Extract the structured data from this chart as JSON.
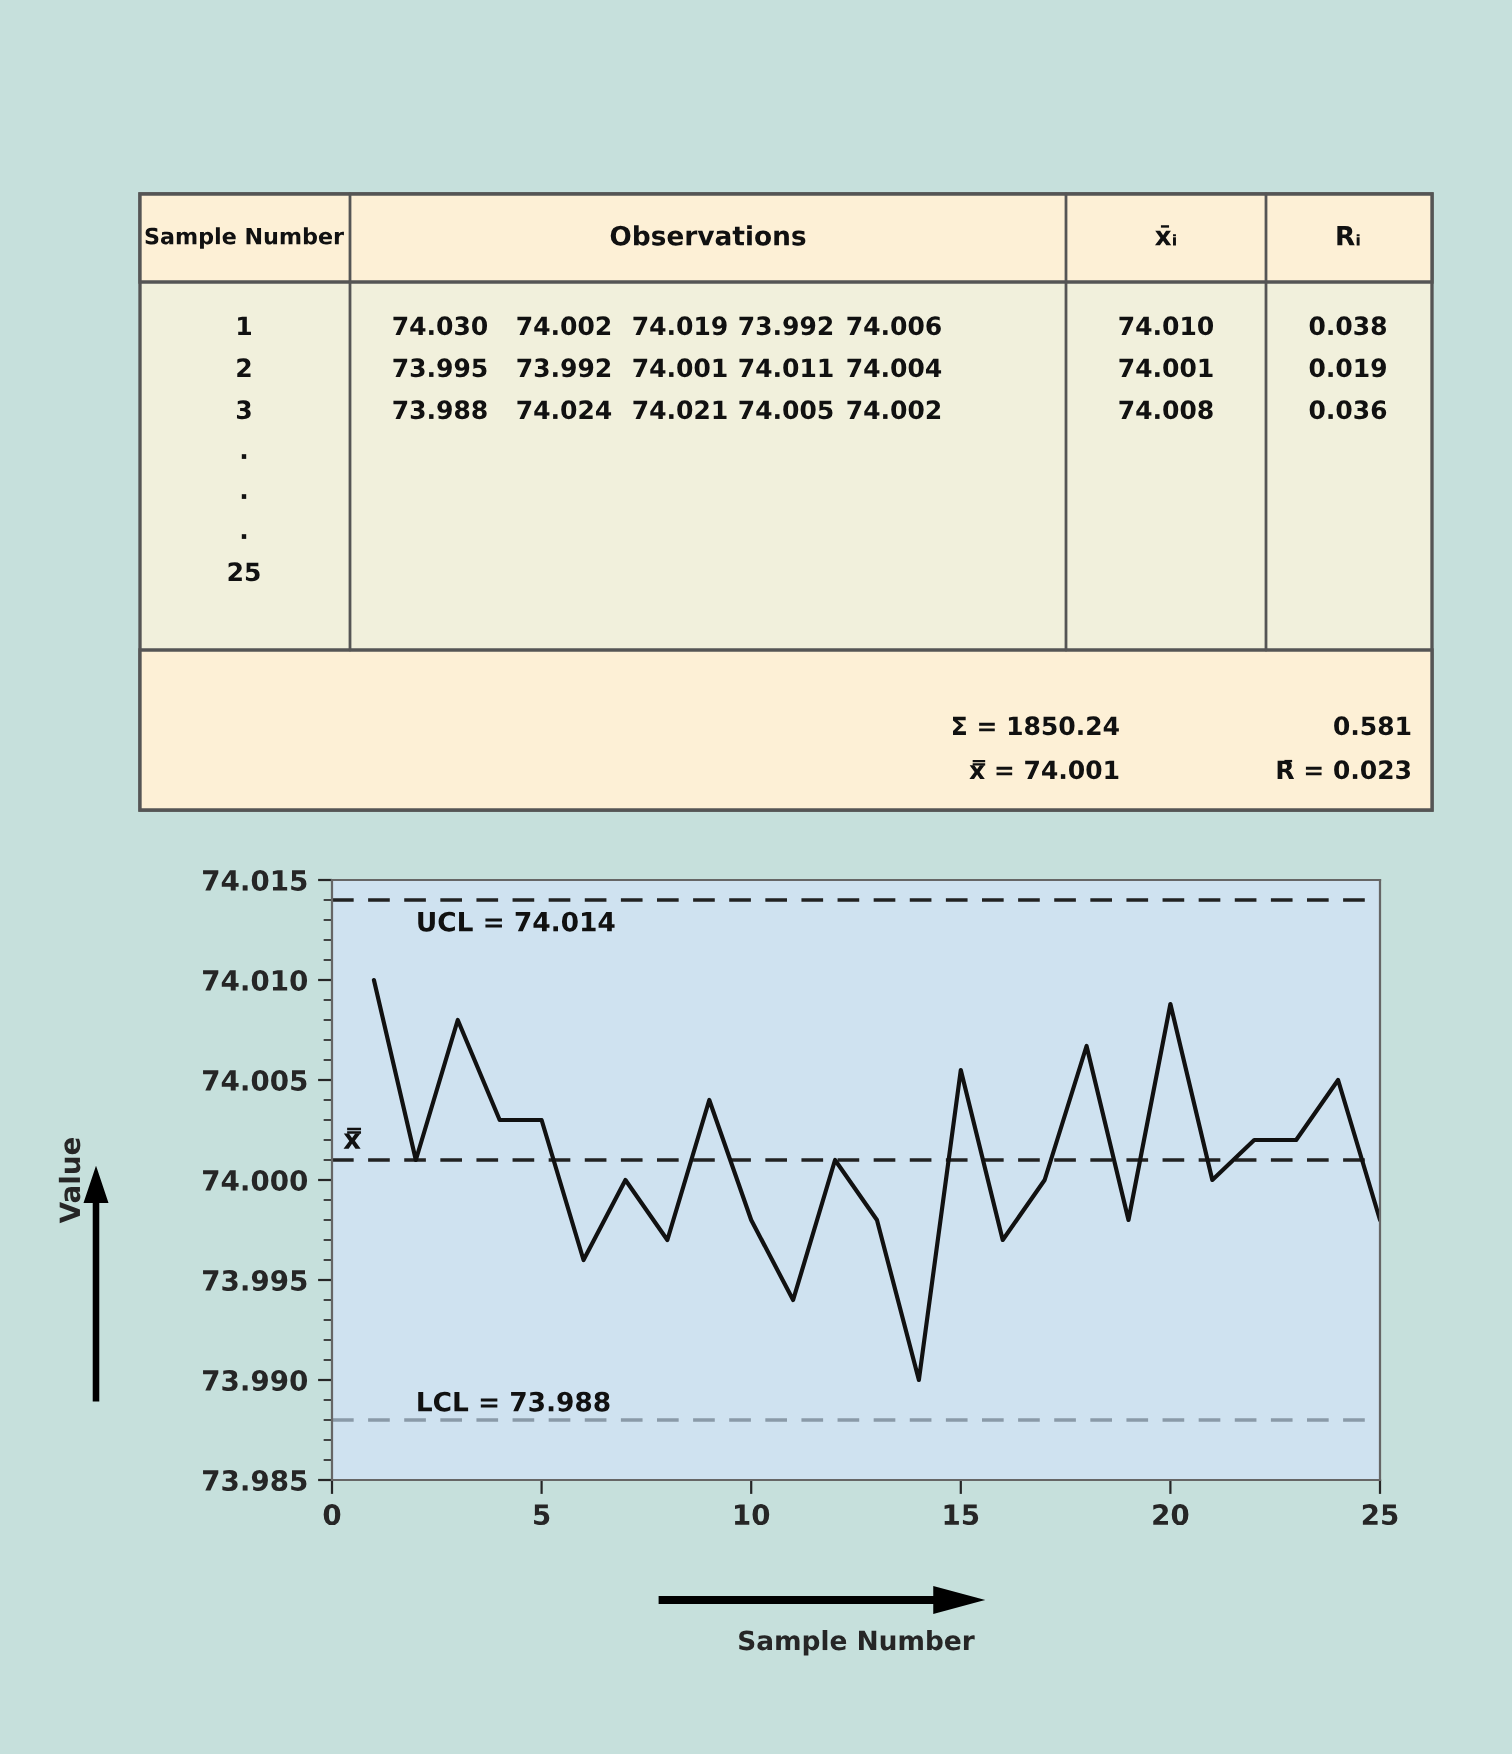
{
  "chart_data": [
    {
      "type": "other",
      "annotations": [
        "Sample Number",
        "Observations",
        "x̄ᵢ",
        "Rᵢ",
        "1",
        "74.030",
        "74.002",
        "74.019",
        "73.992",
        "74.006",
        "74.010",
        "0.038",
        "2",
        "73.995",
        "73.992",
        "74.001",
        "74.011",
        "74.004",
        "74.001",
        "0.019",
        "3",
        "73.988",
        "74.024",
        "74.021",
        "74.005",
        "74.002",
        "74.008",
        "0.036",
        ".",
        ".",
        ".",
        "25",
        "Σ = 1850.24",
        "0.581",
        "x̿ = 74.001",
        "R̄ = 0.023"
      ]
    },
    {
      "type": "line",
      "xlabel": "Sample Number",
      "ylabel": "Value",
      "x": [
        1,
        2,
        3,
        4,
        5,
        6,
        7,
        8,
        9,
        10,
        11,
        12,
        13,
        14,
        15,
        16,
        17,
        18,
        19,
        20,
        21,
        22,
        23,
        24,
        25
      ],
      "series": [
        {
          "color": "#111111",
          "values": [
            74.01,
            74.001,
            74.008,
            74.003,
            74.003,
            73.996,
            74.0,
            73.997,
            74.004,
            73.998,
            73.994,
            74.001,
            73.998,
            73.99,
            74.0055,
            73.997,
            74.0,
            74.0067,
            73.998,
            74.0088,
            74.0,
            74.002,
            74.002,
            74.005,
            73.998
          ]
        }
      ],
      "xlim": [
        0,
        25
      ],
      "xticks": [
        0,
        5,
        10,
        15,
        20,
        25
      ],
      "ylim": [
        73.985,
        74.015
      ],
      "yticks": [
        {
          "value": 73.985,
          "label": "73.985"
        },
        {
          "value": 73.99,
          "label": "73.990"
        },
        {
          "value": 73.995,
          "label": "73.995"
        },
        {
          "value": 74.0,
          "label": "74.000"
        },
        {
          "value": 74.005,
          "label": "74.005"
        },
        {
          "value": 74.01,
          "label": "74.010"
        },
        {
          "value": 74.015,
          "label": "74.015"
        }
      ],
      "ref_lines": [
        {
          "axis": "y",
          "value": 74.014,
          "label": "UCL = 74.014",
          "color": "#222222",
          "line_style": "dashed"
        },
        {
          "axis": "y",
          "value": 74.001,
          "label": "x̿",
          "color": "#222222",
          "line_style": "dashed"
        },
        {
          "axis": "y",
          "value": 73.988,
          "label": "LCL = 73.988",
          "color": "#8a9aa8",
          "line_style": "dashed"
        }
      ],
      "grid": false,
      "legend": false,
      "marker": "none",
      "line_style": "solid"
    }
  ]
}
